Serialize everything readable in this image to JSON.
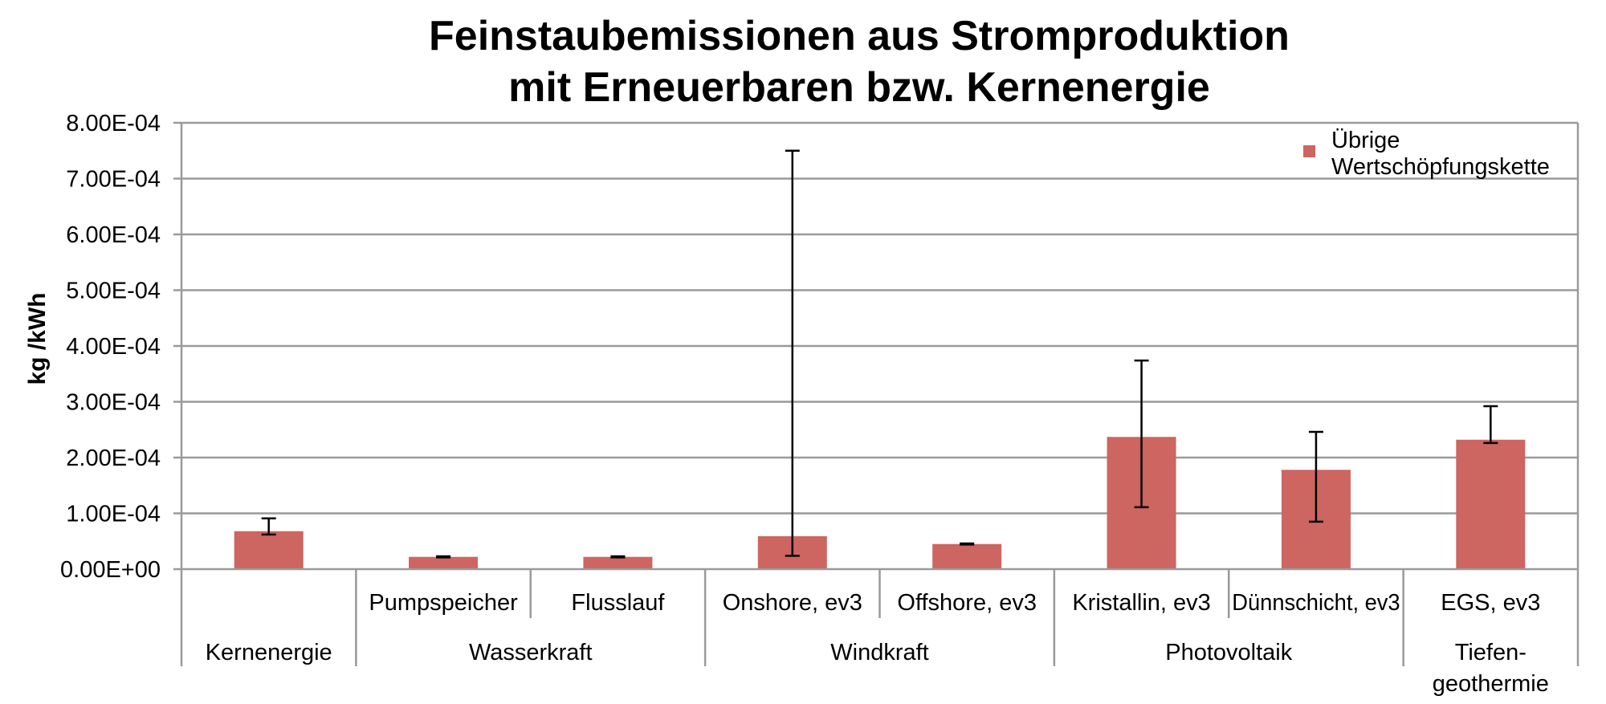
{
  "chart_data": {
    "type": "bar",
    "title_lines": [
      "Feinstaubemissionen aus Stromproduktion",
      "mit Erneuerbaren bzw. Kernenergie"
    ],
    "ylabel": "kg /kWh",
    "xlabel": "",
    "ylim": [
      0,
      0.0008
    ],
    "yticks": [
      0,
      0.0001,
      0.0002,
      0.0003,
      0.0004,
      0.0005,
      0.0006,
      0.0007,
      0.0008
    ],
    "ytick_labels": [
      "0.00E+00",
      "1.00E-04",
      "2.00E-04",
      "3.00E-04",
      "4.00E-04",
      "5.00E-04",
      "6.00E-04",
      "7.00E-04",
      "8.00E-04"
    ],
    "grid": true,
    "legend_position": "top-right",
    "series": [
      {
        "name": "Übrige Wertschöpfungskette",
        "name_lines": [
          "Übrige",
          "Wertschöpfungskette"
        ],
        "color": "#cd6560",
        "values": [
          6.8e-05,
          2.2e-05,
          2.2e-05,
          5.9e-05,
          4.5e-05,
          0.000237,
          0.000178,
          0.000232
        ],
        "error_low": [
          6.2e-05,
          2.1e-05,
          2.1e-05,
          2.4e-05,
          4.4e-05,
          0.000111,
          8.5e-05,
          0.000226
        ],
        "error_high": [
          9.1e-05,
          2.3e-05,
          2.3e-05,
          0.00075,
          4.6e-05,
          0.000374,
          0.000246,
          0.000292
        ]
      }
    ],
    "categories": [
      "",
      "Pumpspeicher",
      "Flusslauf",
      "Onshore, ev3",
      "Offshore, ev3",
      "Kristallin, ev3",
      "Dünnschicht, ev3",
      "EGS, ev3"
    ],
    "groups": [
      {
        "label_lines": [
          "Kernenergie"
        ],
        "span": 1
      },
      {
        "label_lines": [
          "Wasserkraft"
        ],
        "span": 2
      },
      {
        "label_lines": [
          "Windkraft"
        ],
        "span": 2
      },
      {
        "label_lines": [
          "Photovoltaik"
        ],
        "span": 2
      },
      {
        "label_lines": [
          "Tiefen-",
          "geothermie"
        ],
        "span": 1
      }
    ]
  }
}
